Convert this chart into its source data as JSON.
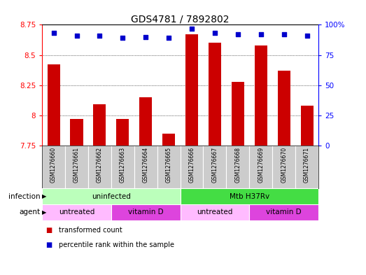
{
  "title": "GDS4781 / 7892802",
  "samples": [
    "GSM1276660",
    "GSM1276661",
    "GSM1276662",
    "GSM1276663",
    "GSM1276664",
    "GSM1276665",
    "GSM1276666",
    "GSM1276667",
    "GSM1276668",
    "GSM1276669",
    "GSM1276670",
    "GSM1276671"
  ],
  "transformed_count": [
    8.42,
    7.97,
    8.09,
    7.97,
    8.15,
    7.85,
    8.67,
    8.6,
    8.28,
    8.58,
    8.37,
    8.08
  ],
  "percentile_rank": [
    93,
    91,
    91,
    89,
    90,
    89,
    97,
    93,
    92,
    92,
    92,
    91
  ],
  "ylim_left": [
    7.75,
    8.75
  ],
  "ylim_right": [
    0,
    100
  ],
  "yticks_left": [
    7.75,
    8.0,
    8.25,
    8.5,
    8.75
  ],
  "yticks_right": [
    0,
    25,
    50,
    75,
    100
  ],
  "ytick_labels_left": [
    "7.75",
    "8",
    "8.25",
    "8.5",
    "8.75"
  ],
  "ytick_labels_right": [
    "0",
    "25",
    "50",
    "75",
    "100%"
  ],
  "bar_color": "#cc0000",
  "dot_color": "#0000cc",
  "background_plot": "#ffffff",
  "infection_groups": [
    {
      "label": "uninfected",
      "start": 0,
      "end": 6,
      "color": "#bbffbb"
    },
    {
      "label": "Mtb H37Rv",
      "start": 6,
      "end": 12,
      "color": "#44dd44"
    }
  ],
  "agent_groups": [
    {
      "label": "untreated",
      "start": 0,
      "end": 3,
      "color": "#ffbbff"
    },
    {
      "label": "vitamin D",
      "start": 3,
      "end": 6,
      "color": "#dd44dd"
    },
    {
      "label": "untreated",
      "start": 6,
      "end": 9,
      "color": "#ffbbff"
    },
    {
      "label": "vitamin D",
      "start": 9,
      "end": 12,
      "color": "#dd44dd"
    }
  ],
  "label_infection": "infection",
  "label_agent": "agent",
  "legend_items": [
    {
      "label": "transformed count",
      "color": "#cc0000"
    },
    {
      "label": "percentile rank within the sample",
      "color": "#0000cc"
    }
  ],
  "bar_width": 0.55,
  "bar_bottom": 7.75,
  "sample_bg_color": "#cccccc"
}
